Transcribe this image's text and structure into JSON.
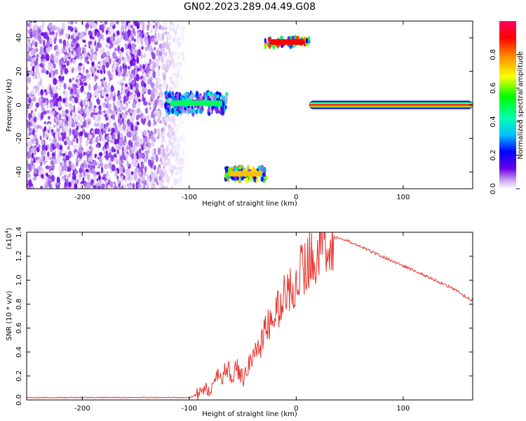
{
  "figure_title": "GN02.2023.289.04.49.G08",
  "chart_data": [
    {
      "type": "heatmap",
      "xlabel": "Height of straight line (km)",
      "ylabel": "Frequency (Hz)",
      "xlim": [
        -252,
        165
      ],
      "ylim": [
        -50,
        50
      ],
      "x_ticks": [
        -200,
        -100,
        0,
        100
      ],
      "y_ticks": [
        -40,
        -20,
        0,
        20,
        40
      ],
      "x_tick_labels": [
        "-200",
        "-100",
        "0",
        "100"
      ],
      "y_tick_labels": [
        "-40",
        "-20",
        "0",
        "20",
        "40"
      ],
      "colorbar": {
        "label": "Normalized spectral amplitude",
        "range": [
          0,
          1
        ],
        "ticks": [
          0.0,
          0.2,
          0.4,
          0.6,
          0.8
        ],
        "tick_labels": [
          "0.0",
          "0.2",
          "0.4",
          "0.6",
          "0.8"
        ],
        "colormap": [
          "#ffffff",
          "#c9a6ee",
          "#6a00e8",
          "#0000ff",
          "#00bfff",
          "#00ffb0",
          "#00ff00",
          "#ffff00",
          "#ff8000",
          "#ff0000",
          "#ff0066"
        ]
      },
      "features": [
        {
          "name": "noise-field",
          "x_range": [
            -252,
            -105
          ],
          "y_range": [
            -50,
            50
          ],
          "amplitude": 0.15
        },
        {
          "name": "track-near-zero",
          "x_range": [
            -122,
            -65
          ],
          "y_range": [
            -5,
            7
          ],
          "amplitude": 0.4
        },
        {
          "name": "track-upper",
          "x_range": [
            -29,
            12
          ],
          "y_range": [
            35,
            40
          ],
          "amplitude": 0.75
        },
        {
          "name": "track-lower",
          "x_range": [
            -67,
            -28
          ],
          "y_range": [
            -45,
            -37
          ],
          "amplitude": 0.6
        },
        {
          "name": "main-line",
          "x_range": [
            12,
            165
          ],
          "y_range": [
            -1,
            1
          ],
          "amplitude": 0.95
        }
      ]
    },
    {
      "type": "line",
      "xlabel": "Height of straight line (km)",
      "ylabel": "SNR (10 * v/v)",
      "y_multiplier_label": "(x10",
      "y_multiplier_exp": "4",
      "xlim": [
        -252,
        165
      ],
      "ylim": [
        0,
        1.4
      ],
      "x_ticks": [
        -200,
        -100,
        0,
        100
      ],
      "y_ticks": [
        0.0,
        0.2,
        0.4,
        0.6,
        0.8,
        1.0,
        1.2,
        1.4
      ],
      "x_tick_labels": [
        "-200",
        "-100",
        "0",
        "100"
      ],
      "y_tick_labels": [
        "0.0",
        "0.2",
        "0.4",
        "0.6",
        "0.8",
        "1.0",
        "1.2",
        "1.4"
      ],
      "series": [
        {
          "color": "#e8322c",
          "x": [
            -252,
            -200,
            -150,
            -100,
            -90,
            -80,
            -75,
            -70,
            -65,
            -60,
            -55,
            -50,
            -45,
            -40,
            -35,
            -30,
            -25,
            -20,
            -15,
            -10,
            -5,
            0,
            5,
            10,
            15,
            20,
            25,
            30,
            35,
            40,
            50,
            60,
            70,
            80,
            90,
            100,
            110,
            120,
            130,
            140,
            150,
            160,
            165
          ],
          "y": [
            0.02,
            0.02,
            0.02,
            0.02,
            0.05,
            0.1,
            0.16,
            0.22,
            0.24,
            0.22,
            0.25,
            0.18,
            0.3,
            0.35,
            0.45,
            0.55,
            0.63,
            0.7,
            0.8,
            0.88,
            0.93,
            1.0,
            1.08,
            1.14,
            1.2,
            1.26,
            1.31,
            1.35,
            1.36,
            1.35,
            1.32,
            1.28,
            1.24,
            1.2,
            1.16,
            1.12,
            1.08,
            1.04,
            1.0,
            0.96,
            0.91,
            0.85,
            0.83
          ]
        }
      ]
    }
  ]
}
